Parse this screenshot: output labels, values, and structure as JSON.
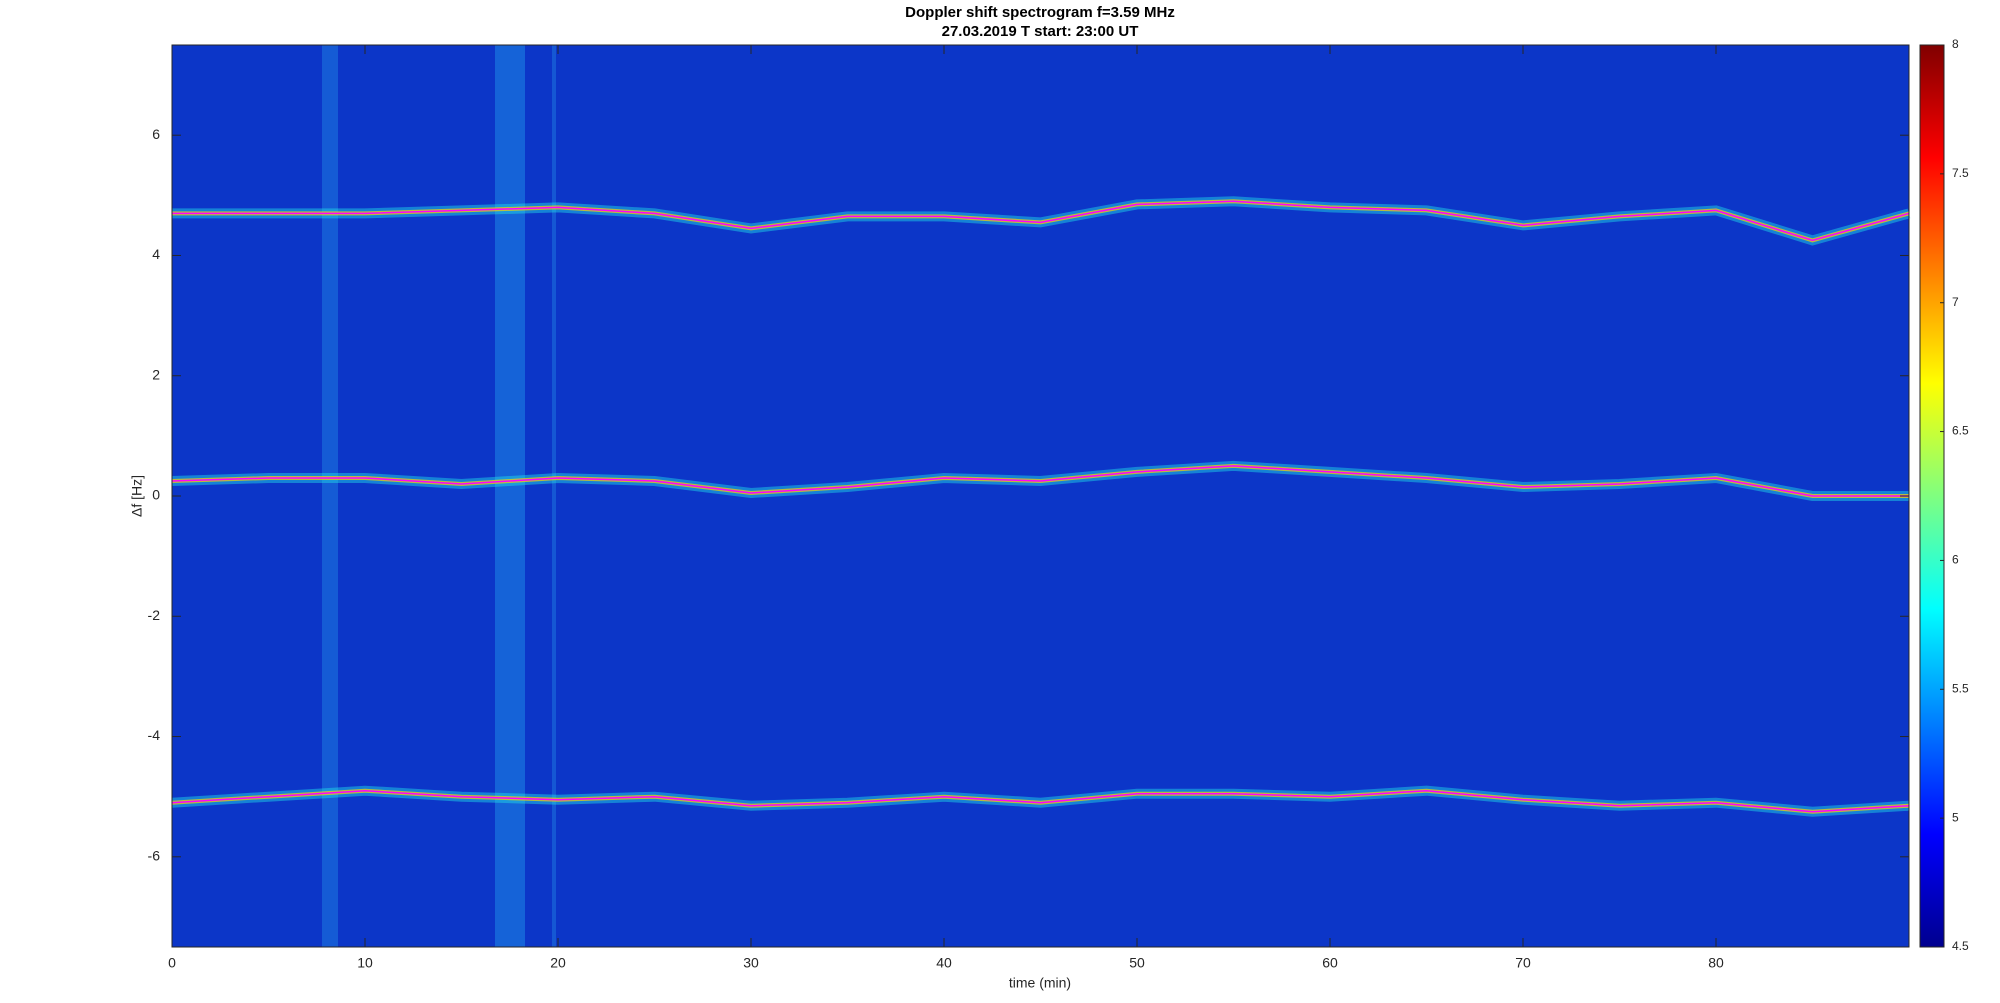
{
  "chart_data": {
    "type": "spectrogram",
    "title": [
      "Doppler shift spectrogram f=3.59 MHz",
      "27.03.2019   T start: 23:00 UT"
    ],
    "xlabel": "time (min)",
    "ylabel": "Δf [Hz]",
    "x": [
      0,
      5,
      10,
      15,
      20,
      25,
      30,
      35,
      40,
      45,
      50,
      55,
      60,
      65,
      70,
      75,
      80,
      85,
      90
    ],
    "series": [
      {
        "color": "#ff00ff",
        "values": [
          4.7,
          4.7,
          4.7,
          4.75,
          4.8,
          4.7,
          4.45,
          4.65,
          4.65,
          4.55,
          4.85,
          4.9,
          4.8,
          4.75,
          4.5,
          4.65,
          4.75,
          4.25,
          4.7
        ]
      },
      {
        "color": "#ff00ff",
        "values": [
          0.25,
          0.3,
          0.3,
          0.2,
          0.3,
          0.25,
          0.05,
          0.15,
          0.3,
          0.25,
          0.4,
          0.5,
          0.4,
          0.3,
          0.15,
          0.2,
          0.3,
          0.0,
          0.0
        ]
      },
      {
        "color": "#ff00ff",
        "values": [
          -5.1,
          -5.0,
          -4.9,
          -5.0,
          -5.05,
          -5.0,
          -5.15,
          -5.1,
          -5.0,
          -5.1,
          -4.95,
          -4.95,
          -5.0,
          -4.9,
          -5.05,
          -5.15,
          -5.1,
          -5.25,
          -5.15
        ]
      }
    ],
    "xlim": [
      0,
      90
    ],
    "xticks": [
      0,
      10,
      20,
      30,
      40,
      50,
      60,
      70,
      80
    ],
    "ylim": [
      -7.5,
      7.5
    ],
    "yticks": [
      -6,
      -4,
      -2,
      0,
      2,
      4,
      6
    ],
    "colormap": "jet",
    "clim": [
      4.5,
      8
    ],
    "cticks": [
      4.5,
      5,
      5.5,
      6,
      6.5,
      7,
      7.5,
      8
    ]
  }
}
